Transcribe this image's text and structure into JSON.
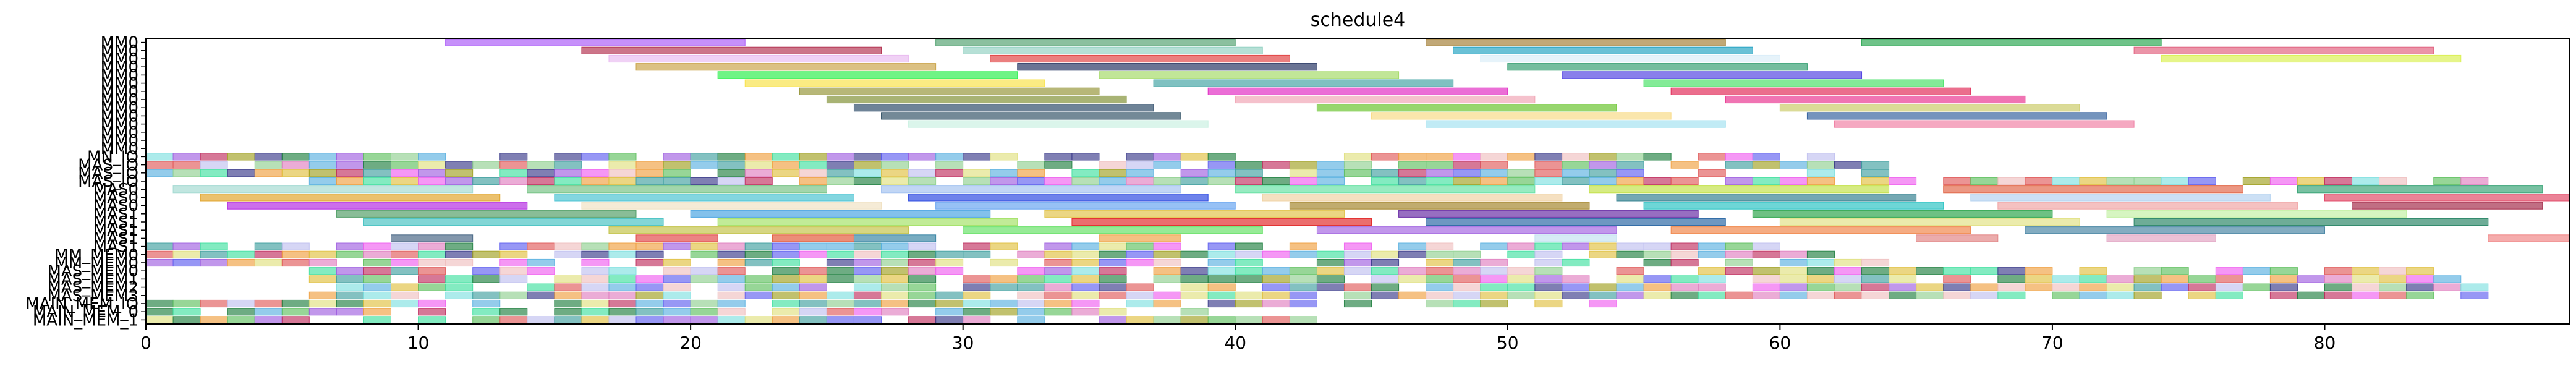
{
  "chart_data": {
    "type": "gantt",
    "title": "schedule4",
    "xlabel": "",
    "ylabel": "",
    "xlim": [
      0,
      89
    ],
    "x_ticks": [
      0,
      10,
      20,
      30,
      40,
      50,
      60,
      70,
      80
    ],
    "grid": false,
    "legend": "none",
    "rows": [
      "MM0",
      "MM0",
      "MM0",
      "MM0",
      "MM0",
      "MM0",
      "MM0",
      "MM0",
      "MM0",
      "MM0",
      "MM0",
      "MM0",
      "MM0",
      "MM0",
      "MN_IO",
      "MAS_IO",
      "MAS_IO",
      "MAS_IO",
      "MAS0",
      "MAS0",
      "MAS0",
      "MAS1",
      "MAS1",
      "MAS1",
      "MAS1",
      "MAS1",
      "MM_MEM0",
      "MM_MEM0",
      "MAS_MEM0",
      "MAS_MEM1",
      "MAS_MEM2",
      "MAS_MEM3",
      "MAIN_MEM_IO",
      "MAIN_MEM_0",
      "MAIN_MEM_1"
    ],
    "row_labels_display": [
      "MM0",
      "MM0",
      "MM0",
      "MM0",
      "MM0",
      "MM0",
      "MM0",
      "MM0",
      "MM0",
      "MM0",
      "MM0",
      "MM0",
      "MM0",
      "MM0",
      "MN_IO",
      "MAS_IO",
      "MAS_IO",
      "MAS_IO",
      "MAS0",
      "MAS0",
      "MAS0",
      "MAS1",
      "MAS1",
      "MAS1",
      "MAS1",
      "MAS1",
      "MM_MEM0",
      "MM_MEM0",
      "MAS_MEM0",
      "MAS_MEM1",
      "MAS_MEM2",
      "MAS_MEM3",
      "MAIN_MEM_IO",
      "MAIN_MEM_0",
      "MAIN_MEM_1"
    ],
    "bars": [
      {
        "row": 0,
        "start": 11,
        "end": 22,
        "color": "#a855f7"
      },
      {
        "row": 0,
        "start": 29,
        "end": 40,
        "color": "#4d9e6b"
      },
      {
        "row": 0,
        "start": 47,
        "end": 58,
        "color": "#a07a2e"
      },
      {
        "row": 0,
        "start": 63,
        "end": 74,
        "color": "#22a34a"
      },
      {
        "row": 1,
        "start": 16,
        "end": 27,
        "color": "#b02b4a"
      },
      {
        "row": 1,
        "start": 30,
        "end": 41,
        "color": "#8fd0c0"
      },
      {
        "row": 1,
        "start": 48,
        "end": 59,
        "color": "#1a9fc0"
      },
      {
        "row": 1,
        "start": 73,
        "end": 84,
        "color": "#e05a7a"
      },
      {
        "row": 2,
        "start": 17,
        "end": 28,
        "color": "#e8b8f0"
      },
      {
        "row": 2,
        "start": 31,
        "end": 42,
        "color": "#e03a3a"
      },
      {
        "row": 2,
        "start": 49,
        "end": 60,
        "color": "#d8ecf8"
      },
      {
        "row": 2,
        "start": 74,
        "end": 85,
        "color": "#d8f04a"
      },
      {
        "row": 3,
        "start": 18,
        "end": 29,
        "color": "#c8a040"
      },
      {
        "row": 3,
        "start": 32,
        "end": 43,
        "color": "#1a2a5a"
      },
      {
        "row": 3,
        "start": 50,
        "end": 61,
        "color": "#2a9a6a"
      },
      {
        "row": 4,
        "start": 21,
        "end": 32,
        "color": "#22ee44"
      },
      {
        "row": 4,
        "start": 35,
        "end": 46,
        "color": "#a0d860"
      },
      {
        "row": 4,
        "start": 52,
        "end": 63,
        "color": "#4a3ae0"
      },
      {
        "row": 5,
        "start": 22,
        "end": 33,
        "color": "#f8e040"
      },
      {
        "row": 5,
        "start": 37,
        "end": 48,
        "color": "#3aa0a0"
      },
      {
        "row": 5,
        "start": 55,
        "end": 66,
        "color": "#40e060"
      },
      {
        "row": 6,
        "start": 24,
        "end": 35,
        "color": "#909030"
      },
      {
        "row": 6,
        "start": 39,
        "end": 50,
        "color": "#e020c0"
      },
      {
        "row": 6,
        "start": 56,
        "end": 67,
        "color": "#e02050"
      },
      {
        "row": 7,
        "start": 25,
        "end": 36,
        "color": "#7a8a2a"
      },
      {
        "row": 7,
        "start": 40,
        "end": 51,
        "color": "#f0a0b0"
      },
      {
        "row": 7,
        "start": 58,
        "end": 69,
        "color": "#e82a8a"
      },
      {
        "row": 8,
        "start": 26,
        "end": 37,
        "color": "#204060"
      },
      {
        "row": 8,
        "start": 43,
        "end": 54,
        "color": "#60c020"
      },
      {
        "row": 8,
        "start": 60,
        "end": 71,
        "color": "#c8c860"
      },
      {
        "row": 9,
        "start": 27,
        "end": 38,
        "color": "#284a60"
      },
      {
        "row": 9,
        "start": 45,
        "end": 56,
        "color": "#f8d880"
      },
      {
        "row": 9,
        "start": 61,
        "end": 72,
        "color": "#2a5a9a"
      },
      {
        "row": 10,
        "start": 28,
        "end": 39,
        "color": "#c8f0e0"
      },
      {
        "row": 10,
        "start": 47,
        "end": 58,
        "color": "#a0e0f0"
      },
      {
        "row": 10,
        "start": 62,
        "end": 73,
        "color": "#f07aa0"
      },
      {
        "row": 18,
        "start": 1,
        "end": 12,
        "color": "#a0d8d0"
      },
      {
        "row": 18,
        "start": 14,
        "end": 25,
        "color": "#70c080"
      },
      {
        "row": 18,
        "start": 27,
        "end": 38,
        "color": "#a0c0f0"
      },
      {
        "row": 18,
        "start": 40,
        "end": 51,
        "color": "#60e0a0"
      },
      {
        "row": 18,
        "start": 53,
        "end": 64,
        "color": "#c0e040"
      },
      {
        "row": 18,
        "start": 66,
        "end": 77,
        "color": "#e06040"
      },
      {
        "row": 18,
        "start": 79,
        "end": 88,
        "color": "#30a070"
      },
      {
        "row": 19,
        "start": 2,
        "end": 13,
        "color": "#e0a020"
      },
      {
        "row": 19,
        "start": 15,
        "end": 26,
        "color": "#40c0d0"
      },
      {
        "row": 19,
        "start": 28,
        "end": 39,
        "color": "#2040e0"
      },
      {
        "row": 19,
        "start": 41,
        "end": 52,
        "color": "#f0d0a0"
      },
      {
        "row": 19,
        "start": 54,
        "end": 65,
        "color": "#2a7a8a"
      },
      {
        "row": 19,
        "start": 67,
        "end": 78,
        "color": "#b0d0f0"
      },
      {
        "row": 19,
        "start": 80,
        "end": 89,
        "color": "#e04060"
      },
      {
        "row": 20,
        "start": 3,
        "end": 14,
        "color": "#b020e0"
      },
      {
        "row": 20,
        "start": 16,
        "end": 27,
        "color": "#f0e0c0"
      },
      {
        "row": 20,
        "start": 29,
        "end": 40,
        "color": "#60a0f0"
      },
      {
        "row": 20,
        "start": 42,
        "end": 53,
        "color": "#a08020"
      },
      {
        "row": 20,
        "start": 55,
        "end": 66,
        "color": "#20c0c0"
      },
      {
        "row": 20,
        "start": 68,
        "end": 79,
        "color": "#f0a0a0"
      },
      {
        "row": 20,
        "start": 81,
        "end": 88,
        "color": "#a02040"
      },
      {
        "row": 21,
        "start": 7,
        "end": 18,
        "color": "#4a9a60"
      },
      {
        "row": 21,
        "start": 20,
        "end": 31,
        "color": "#40a0e0"
      },
      {
        "row": 21,
        "start": 33,
        "end": 44,
        "color": "#e0c040"
      },
      {
        "row": 21,
        "start": 46,
        "end": 57,
        "color": "#6020a0"
      },
      {
        "row": 21,
        "start": 59,
        "end": 70,
        "color": "#20a040"
      },
      {
        "row": 21,
        "start": 72,
        "end": 83,
        "color": "#c0f0a0"
      },
      {
        "row": 22,
        "start": 8,
        "end": 19,
        "color": "#40c0c0"
      },
      {
        "row": 22,
        "start": 21,
        "end": 32,
        "color": "#a0e060"
      },
      {
        "row": 22,
        "start": 34,
        "end": 45,
        "color": "#e02020"
      },
      {
        "row": 22,
        "start": 47,
        "end": 58,
        "color": "#2060a0"
      },
      {
        "row": 22,
        "start": 60,
        "end": 71,
        "color": "#e0e080"
      },
      {
        "row": 22,
        "start": 73,
        "end": 86,
        "color": "#208060"
      },
      {
        "row": 23,
        "start": 17,
        "end": 28,
        "color": "#c0c040"
      },
      {
        "row": 23,
        "start": 30,
        "end": 41,
        "color": "#60e060"
      },
      {
        "row": 23,
        "start": 43,
        "end": 54,
        "color": "#a060e0"
      },
      {
        "row": 23,
        "start": 56,
        "end": 67,
        "color": "#f08040"
      },
      {
        "row": 23,
        "start": 69,
        "end": 80,
        "color": "#4080a0"
      },
      {
        "row": 24,
        "start": 9,
        "end": 12,
        "color": "#406080"
      },
      {
        "row": 24,
        "start": 18,
        "end": 21,
        "color": "#e04040"
      },
      {
        "row": 24,
        "start": 23,
        "end": 26,
        "color": "#e05030"
      },
      {
        "row": 24,
        "start": 26,
        "end": 29,
        "color": "#3080a0"
      },
      {
        "row": 24,
        "start": 35,
        "end": 38,
        "color": "#f0a040"
      },
      {
        "row": 24,
        "start": 51,
        "end": 54,
        "color": "#c0e0f0"
      },
      {
        "row": 24,
        "start": 65,
        "end": 68,
        "color": "#e08080"
      },
      {
        "row": 24,
        "start": 72,
        "end": 76,
        "color": "#e0a0c0"
      },
      {
        "row": 24,
        "start": 86,
        "end": 89,
        "color": "#f08080"
      }
    ],
    "dense_rows": [
      14,
      15,
      16,
      17,
      25,
      26,
      27,
      28,
      29,
      30,
      31,
      32,
      33,
      34
    ]
  }
}
